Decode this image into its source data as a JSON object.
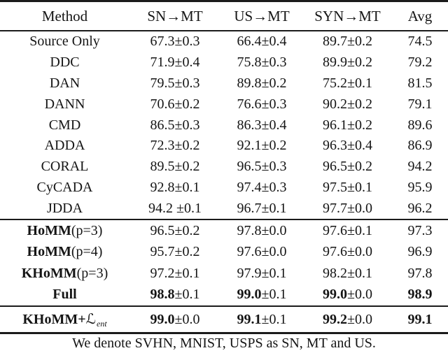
{
  "table": {
    "columns": [
      "Method",
      "SN→MT",
      "US→MT",
      "SYN→MT",
      "Avg"
    ],
    "sections": [
      {
        "rows": [
          {
            "method": "Source Only",
            "cells": [
              [
                "67.3",
                "±0.3"
              ],
              [
                "66.4",
                "±0.4"
              ],
              [
                "89.7",
                "±0.2"
              ]
            ],
            "avg": "74.5"
          },
          {
            "method": "DDC",
            "cells": [
              [
                "71.9",
                "±0.4"
              ],
              [
                "75.8",
                "±0.3"
              ],
              [
                "89.9",
                "±0.2"
              ]
            ],
            "avg": "79.2"
          },
          {
            "method": "DAN",
            "cells": [
              [
                "79.5",
                "±0.3"
              ],
              [
                "89.8",
                "±0.2"
              ],
              [
                "75.2",
                "±0.1"
              ]
            ],
            "avg": "81.5"
          },
          {
            "method": "DANN",
            "cells": [
              [
                "70.6",
                "±0.2"
              ],
              [
                "76.6",
                "±0.3"
              ],
              [
                "90.2",
                "±0.2"
              ]
            ],
            "avg": "79.1"
          },
          {
            "method": "CMD",
            "cells": [
              [
                "86.5",
                "±0.3"
              ],
              [
                "86.3",
                "±0.4"
              ],
              [
                "96.1",
                "±0.2"
              ]
            ],
            "avg": "89.6"
          },
          {
            "method": "ADDA",
            "cells": [
              [
                "72.3",
                "±0.2"
              ],
              [
                "92.1",
                "±0.2"
              ],
              [
                "96.3",
                "±0.4"
              ]
            ],
            "avg": "86.9"
          },
          {
            "method": "CORAL",
            "cells": [
              [
                "89.5",
                "±0.2"
              ],
              [
                "96.5",
                "±0.3"
              ],
              [
                "96.5",
                "±0.2"
              ]
            ],
            "avg": "94.2"
          },
          {
            "method": "CyCADA",
            "cells": [
              [
                "92.8",
                "±0.1"
              ],
              [
                "97.4",
                "±0.3"
              ],
              [
                "97.5",
                "±0.1"
              ]
            ],
            "avg": "95.9"
          },
          {
            "method": "JDDA",
            "cells": [
              [
                "94.2 ",
                "±0.1"
              ],
              [
                "96.7",
                "±0.1"
              ],
              [
                "97.7",
                "±0.0"
              ]
            ],
            "avg": "96.2"
          }
        ]
      },
      {
        "rows": [
          {
            "method": {
              "bold": "HoMM",
              "plain": "(p=3)"
            },
            "cells": [
              [
                "96.5",
                "±0.2"
              ],
              [
                "97.8",
                "±0.0"
              ],
              [
                "97.6",
                "±0.1"
              ]
            ],
            "avg": "97.3"
          },
          {
            "method": {
              "bold": "HoMM",
              "plain": "(p=4)"
            },
            "cells": [
              [
                "95.7",
                "±0.2"
              ],
              [
                "97.6",
                "±0.0"
              ],
              [
                "97.6",
                "±0.0"
              ]
            ],
            "avg": "96.9"
          },
          {
            "method": {
              "bold": "KHoMM",
              "plain": "(p=3)"
            },
            "cells": [
              [
                "97.2",
                "±0.1"
              ],
              [
                "97.9",
                "±0.1"
              ],
              [
                "98.2",
                "±0.1"
              ]
            ],
            "avg": "97.8"
          },
          {
            "method": {
              "bold": "Full",
              "plain": ""
            },
            "cells": [
              [
                "98.8",
                "±0.1"
              ],
              [
                "99.0",
                "±0.1"
              ],
              [
                "99.0",
                "±0.0"
              ]
            ],
            "avg": "98.9"
          }
        ]
      },
      {
        "rows": [
          {
            "method": {
              "bold": "KHoMM+",
              "math": "ℒ",
              "sub": "ent"
            },
            "cells": [
              [
                "99.0",
                "±0.0"
              ],
              [
                "99.1",
                "±0.1"
              ],
              [
                "99.2",
                "±0.0"
              ]
            ],
            "avg": "99.1"
          }
        ]
      }
    ],
    "footnote": "We denote SVHN, MNIST, USPS as SN, MT and US."
  }
}
